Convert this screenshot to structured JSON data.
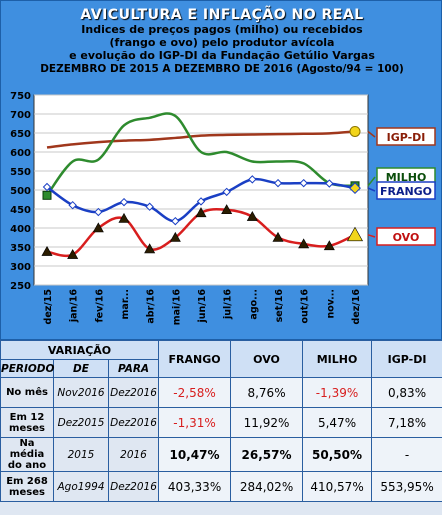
{
  "title": "AVICULTURA E INFLAÇÃO NO REAL",
  "subtitle_lines": [
    "Indices de preços pagos (milho) ou recebidos",
    "(frango e ovo) pelo produtor avícola",
    "e evolução do IGP-DI da Fundação Getúlio Vargas",
    "DEZEMBRO DE 2015 A DEZEMBRO DE 2016 (Agosto/94 = 100)"
  ],
  "chart_data": {
    "type": "line",
    "categories": [
      "dez/15",
      "jan/16",
      "fev/16",
      "mar...",
      "abr/16",
      "mai/16",
      "jun/16",
      "jul/16",
      "ago...",
      "set/16",
      "out/16",
      "nov...",
      "dez/16"
    ],
    "ylim": [
      250,
      750
    ],
    "yticks": [
      250,
      300,
      350,
      400,
      450,
      500,
      550,
      600,
      650,
      700,
      750
    ],
    "grid": true,
    "series": [
      {
        "name": "IGP-DI",
        "color": "#a0371c",
        "marker": "circle",
        "values": [
          612,
          620,
          626,
          630,
          632,
          637,
          643,
          645,
          646,
          647,
          648,
          649,
          654
        ]
      },
      {
        "name": "MILHO",
        "color": "#2e8b2e",
        "marker": "square",
        "values": [
          486,
          575,
          580,
          670,
          690,
          695,
          600,
          600,
          575,
          575,
          570,
          518,
          511
        ]
      },
      {
        "name": "FRANGO",
        "color": "#1a3fc4",
        "marker": "diamond",
        "values": [
          508,
          460,
          442,
          468,
          456,
          418,
          470,
          495,
          528,
          518,
          518,
          517,
          505
        ]
      },
      {
        "name": "OVO",
        "color": "#d81e1e",
        "marker": "triangle",
        "values": [
          338,
          330,
          400,
          425,
          345,
          375,
          440,
          448,
          430,
          375,
          358,
          353,
          382
        ]
      }
    ]
  },
  "table": {
    "header": {
      "variacao": "VARIAÇÃO",
      "periodo": "PERIODO",
      "de": "DE",
      "para": "PARA",
      "cols": [
        "FRANGO",
        "OVO",
        "MILHO",
        "IGP-DI"
      ]
    },
    "rows": [
      {
        "label": "No mês",
        "de": "Nov2016",
        "para": "Dez2016",
        "values": [
          "-2,58%",
          "8,76%",
          "-1,39%",
          "0,83%"
        ]
      },
      {
        "label": "Em 12 meses",
        "de": "Dez2015",
        "para": "Dez2016",
        "values": [
          "-1,31%",
          "11,92%",
          "5,47%",
          "7,18%"
        ]
      },
      {
        "label": "Na média do ano",
        "de": "2015",
        "para": "2016",
        "values": [
          "10,47%",
          "26,57%",
          "50,50%",
          "-"
        ]
      },
      {
        "label": "Em 268 meses",
        "de": "Ago1994",
        "para": "Dez2016",
        "values": [
          "403,33%",
          "284,02%",
          "410,57%",
          "553,95%"
        ]
      }
    ]
  }
}
